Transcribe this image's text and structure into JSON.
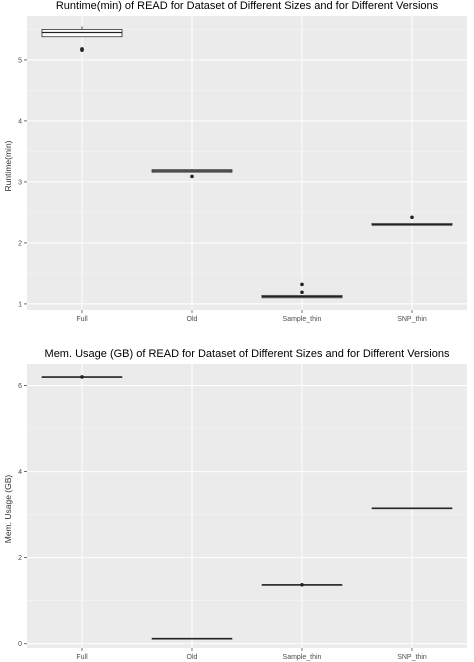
{
  "chart_data": [
    {
      "type": "box",
      "title": "Runtime(min) of READ for Dataset of Different Sizes and for Different Versions",
      "xlabel": "",
      "ylabel": "Runtime(min)",
      "categories": [
        "Full",
        "Old",
        "Sample_thin",
        "SNP_thin"
      ],
      "yticks": [
        1,
        2,
        3,
        4,
        5
      ],
      "ylim": [
        0.9,
        5.72
      ],
      "boxes": [
        {
          "category": "Full",
          "lower_whisker": 5.38,
          "q1": 5.38,
          "median": 5.45,
          "q3": 5.5,
          "upper_whisker": 5.55,
          "outliers": [
            5.16,
            5.18
          ]
        },
        {
          "category": "Old",
          "lower_whisker": 3.16,
          "q1": 3.16,
          "median": 3.18,
          "q3": 3.2,
          "upper_whisker": 3.21,
          "outliers": [
            3.09
          ]
        },
        {
          "category": "Sample_thin",
          "lower_whisker": 1.1,
          "q1": 1.1,
          "median": 1.12,
          "q3": 1.14,
          "upper_whisker": 1.14,
          "outliers": [
            1.19,
            1.32
          ]
        },
        {
          "category": "SNP_thin",
          "lower_whisker": 2.29,
          "q1": 2.29,
          "median": 2.3,
          "q3": 2.32,
          "upper_whisker": 2.32,
          "outliers": [
            2.42
          ]
        }
      ],
      "grid": true
    },
    {
      "type": "box",
      "title": "Mem. Usage (GB) of READ for Dataset of Different Sizes and for Different Versions",
      "xlabel": "",
      "ylabel": "Mem. Usage (GB)",
      "categories": [
        "Full",
        "Old",
        "Sample_thin",
        "SNP_thin"
      ],
      "yticks": [
        0,
        2,
        4,
        6
      ],
      "ylim": [
        -0.1,
        6.5
      ],
      "boxes": [
        {
          "category": "Full",
          "lower_whisker": 6.2,
          "q1": 6.2,
          "median": 6.2,
          "q3": 6.2,
          "upper_whisker": 6.2,
          "outliers": [
            6.2
          ]
        },
        {
          "category": "Old",
          "lower_whisker": 0.12,
          "q1": 0.12,
          "median": 0.12,
          "q3": 0.12,
          "upper_whisker": 0.12,
          "outliers": []
        },
        {
          "category": "Sample_thin",
          "lower_whisker": 1.37,
          "q1": 1.37,
          "median": 1.37,
          "q3": 1.37,
          "upper_whisker": 1.37,
          "outliers": [
            1.37
          ]
        },
        {
          "category": "SNP_thin",
          "lower_whisker": 3.15,
          "q1": 3.15,
          "median": 3.15,
          "q3": 3.15,
          "upper_whisker": 3.15,
          "outliers": []
        }
      ],
      "grid": true
    }
  ]
}
